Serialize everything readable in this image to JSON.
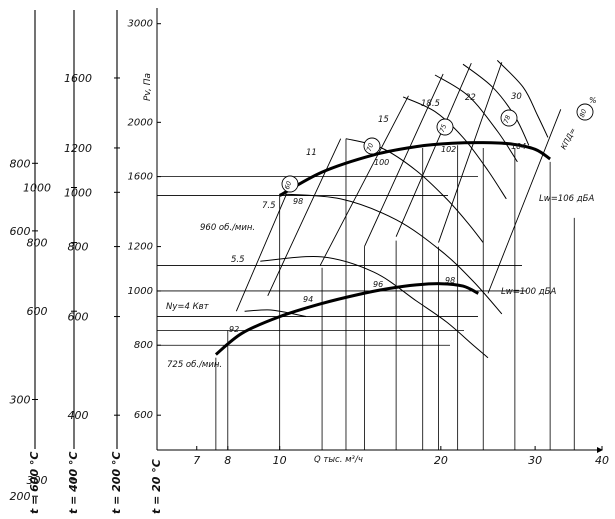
{
  "chart_data": {
    "type": "line",
    "title": "",
    "xlabel": "Q тыс. м³/ч",
    "ylabel": "Pv, Па",
    "x_scale": "log",
    "y_scale": "log",
    "xlim": [
      5.9,
      40
    ],
    "ylim": [
      520,
      3200
    ],
    "x_ticks": [
      7,
      8,
      10,
      20,
      30,
      40
    ],
    "y_ticks": [
      600,
      800,
      1000,
      1200,
      1600,
      2000,
      3000
    ],
    "secondary_axes": [
      {
        "label": "t = 600 °C",
        "ticks": [
          {
            "label": "800",
            "pv": 1690
          },
          {
            "label": "600",
            "pv": 1280
          },
          {
            "label": "300",
            "pv": 640
          },
          {
            "label": "200",
            "pv": 430
          }
        ]
      },
      {
        "label": "t = 400 °C",
        "ticks": [
          {
            "label": "1000",
            "pv": 1530
          },
          {
            "label": "800",
            "pv": 1220
          },
          {
            "label": "600",
            "pv": 920
          },
          {
            "label": "300",
            "pv": 460
          }
        ]
      },
      {
        "label": "t = 200 °C",
        "ticks": [
          {
            "label": "1600",
            "pv": 2400
          },
          {
            "label": "1200",
            "pv": 1800
          },
          {
            "label": "1000",
            "pv": 1500
          },
          {
            "label": "800",
            "pv": 1200
          },
          {
            "label": "600",
            "pv": 900
          },
          {
            "label": "400",
            "pv": 600
          }
        ]
      },
      {
        "label": "t = 20 °C",
        "ticks": []
      }
    ],
    "series": [
      {
        "name": "960 об./мин.",
        "x": [
          10,
          12,
          15,
          18,
          21,
          24,
          27,
          30,
          32
        ],
        "y": [
          1480,
          1630,
          1750,
          1810,
          1835,
          1840,
          1830,
          1790,
          1720
        ]
      },
      {
        "name": "725 об./мин.",
        "x": [
          7.6,
          8.5,
          10,
          12,
          14,
          16,
          18,
          20,
          22,
          23.5
        ],
        "y": [
          770,
          840,
          900,
          950,
          985,
          1010,
          1025,
          1030,
          1020,
          990
        ]
      }
    ],
    "power_curves": [
      {
        "label": "5.5",
        "x": [
          9.2,
          12,
          15,
          18,
          20.5,
          23,
          24.5
        ],
        "y": [
          1130,
          1150,
          1080,
          960,
          880,
          800,
          760
        ]
      },
      {
        "label": "7.5",
        "x": [
          10,
          13,
          16.5,
          20,
          23,
          26
        ],
        "y": [
          1490,
          1460,
          1340,
          1180,
          1040,
          910
        ]
      },
      {
        "label": "11",
        "x": [
          13.3,
          15.5,
          18,
          20.5,
          22.5,
          24
        ],
        "y": [
          1870,
          1800,
          1640,
          1460,
          1320,
          1220
        ]
      },
      {
        "label": "15",
        "x": [
          17,
          19.5,
          22,
          24.5,
          26.5
        ],
        "y": [
          2220,
          2090,
          1880,
          1640,
          1460
        ]
      },
      {
        "label": "18.5",
        "x": [
          19.5,
          22.5,
          25.5,
          27.8
        ],
        "y": [
          2430,
          2230,
          1930,
          1700
        ]
      },
      {
        "label": "22",
        "x": [
          22,
          25,
          27.5,
          29.2
        ],
        "y": [
          2540,
          2310,
          2050,
          1820
        ]
      },
      {
        "label": "30",
        "x": [
          25.5,
          28.5,
          30.3,
          31.7
        ],
        "y": [
          2580,
          2310,
          2060,
          1880
        ]
      },
      {
        "label": "Ny=4 Квт",
        "x": [
          8.6,
          9.5,
          10.3,
          11.2
        ],
        "y": [
          920,
          925,
          915,
          900
        ]
      }
    ],
    "rpm_lines": [
      {
        "x": [
          8.3,
          10.3
        ],
        "y": [
          920,
          1490
        ]
      },
      {
        "x": [
          9.5,
          13
        ],
        "y": [
          980,
          1870
        ]
      },
      {
        "x": [
          11.9,
          17.4
        ],
        "y": [
          1110,
          2230
        ]
      },
      {
        "x": [
          14.4,
          20.2
        ],
        "y": [
          1200,
          2440
        ]
      },
      {
        "x": [
          16.5,
          22.8
        ],
        "y": [
          1250,
          2550
        ]
      },
      {
        "x": [
          19.8,
          26
        ],
        "y": [
          1220,
          2560
        ]
      },
      {
        "x": [
          24.5,
          33.5
        ],
        "y": [
          990,
          2110
        ]
      }
    ],
    "point_labels": [
      "92",
      "94",
      "96",
      "98",
      "98",
      "100",
      "102",
      "104"
    ],
    "efficiency_labels": [
      "60",
      "70",
      "75",
      "78",
      "80"
    ],
    "annotations": [
      "960 об./мин.",
      "725 об./мин.",
      "Ny=4 Квт",
      "Lw=106 дБА",
      "Lw=100 дБА",
      "КПД=",
      "%"
    ]
  }
}
